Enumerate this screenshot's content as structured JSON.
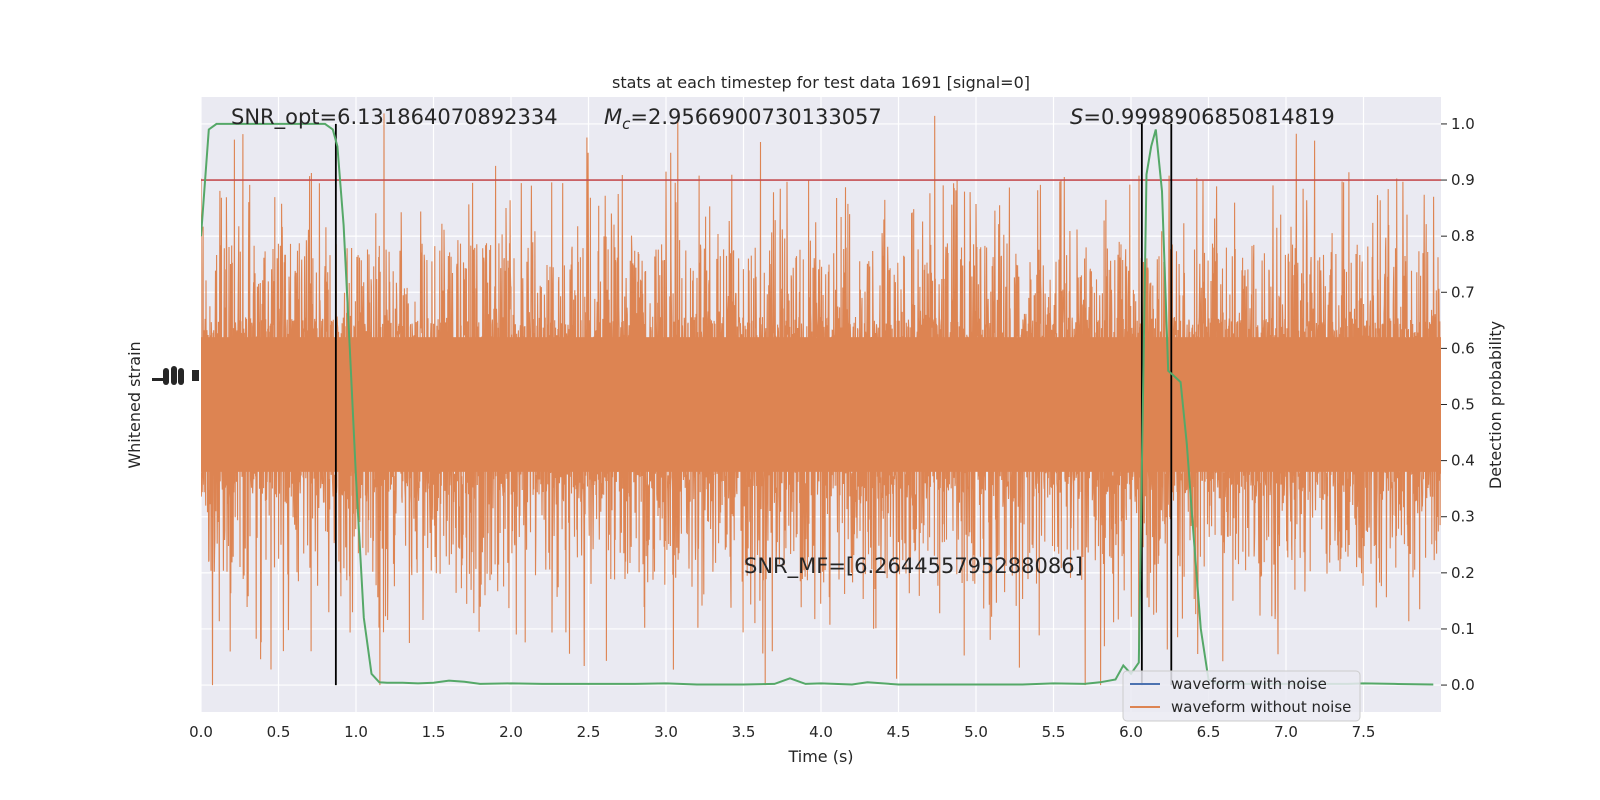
{
  "chart_data": {
    "type": "line",
    "title": "stats at each timestep for test data 1691 [signal=0]",
    "xlabel": "Time (s)",
    "ylabel_left": "Whitened strain",
    "ylabel_right": "Detection probability",
    "xlim": [
      0,
      8
    ],
    "ylim_right": [
      -0.048,
      1.048
    ],
    "x_ticks": [
      0.0,
      0.5,
      1.0,
      1.5,
      2.0,
      2.5,
      3.0,
      3.5,
      4.0,
      4.5,
      5.0,
      5.5,
      6.0,
      6.5,
      7.0,
      7.5
    ],
    "x_tick_labels": [
      "0.0",
      "0.5",
      "1.0",
      "1.5",
      "2.0",
      "2.5",
      "3.0",
      "3.5",
      "4.0",
      "4.5",
      "5.0",
      "5.5",
      "6.0",
      "6.5",
      "7.0",
      "7.5"
    ],
    "y_right_ticks": [
      0.0,
      0.1,
      0.2,
      0.3,
      0.4,
      0.5,
      0.6,
      0.7,
      0.8,
      0.9,
      1.0
    ],
    "y_right_tick_labels": [
      "0.0",
      "0.1",
      "0.2",
      "0.3",
      "0.4",
      "0.5",
      "0.6",
      "0.7",
      "0.8",
      "0.9",
      "1.0"
    ],
    "threshold": 0.9,
    "vertical_markers": [
      0.87,
      6.07,
      6.26
    ],
    "annotations": {
      "snr_opt": "SNR_opt=6.131864070892334",
      "mc_symbol": "M",
      "mc_subscript": "c",
      "mc_value": "=2.9566900730133057",
      "s_symbol": "S",
      "s_value": "=0.9998906850814819",
      "snr_mf": "SNR_MF=[6.264455795288086]"
    },
    "legend": {
      "placement": "lower-right",
      "entries": [
        {
          "label": "waveform with noise",
          "color": "#4c72b0"
        },
        {
          "label": "waveform without noise",
          "color": "#dd8452"
        }
      ]
    },
    "colors": {
      "background": "#eaeaf2",
      "grid": "#ffffff",
      "strain": "#dd8452",
      "probability": "#55a868",
      "threshold": "#c44e52",
      "markers": "#000000"
    },
    "probability_series": {
      "x": [
        0.0,
        0.05,
        0.1,
        0.15,
        0.2,
        0.3,
        0.4,
        0.5,
        0.6,
        0.7,
        0.8,
        0.85,
        0.88,
        0.92,
        0.96,
        1.0,
        1.05,
        1.1,
        1.15,
        1.2,
        1.3,
        1.4,
        1.5,
        1.6,
        1.7,
        1.8,
        2.0,
        2.2,
        2.5,
        2.8,
        3.0,
        3.2,
        3.5,
        3.7,
        3.8,
        3.9,
        4.0,
        4.2,
        4.3,
        4.5,
        4.8,
        5.0,
        5.3,
        5.5,
        5.7,
        5.8,
        5.9,
        5.95,
        6.0,
        6.05,
        6.1,
        6.13,
        6.16,
        6.2,
        6.24,
        6.28,
        6.32,
        6.36,
        6.4,
        6.45,
        6.5,
        6.55,
        6.6,
        6.7,
        6.8,
        7.0,
        7.2,
        7.4,
        7.5,
        7.7,
        7.95
      ],
      "y": [
        0.8,
        0.99,
        1.0,
        1.0,
        1.0,
        1.0,
        1.0,
        1.0,
        1.0,
        1.0,
        1.0,
        0.99,
        0.96,
        0.82,
        0.6,
        0.37,
        0.12,
        0.02,
        0.005,
        0.004,
        0.004,
        0.003,
        0.004,
        0.008,
        0.006,
        0.002,
        0.003,
        0.002,
        0.002,
        0.002,
        0.003,
        0.001,
        0.001,
        0.002,
        0.012,
        0.002,
        0.003,
        0.001,
        0.005,
        0.001,
        0.001,
        0.001,
        0.001,
        0.003,
        0.002,
        0.005,
        0.01,
        0.035,
        0.02,
        0.04,
        0.91,
        0.96,
        0.99,
        0.88,
        0.56,
        0.55,
        0.54,
        0.43,
        0.28,
        0.1,
        0.01,
        0.003,
        0.002,
        0.002,
        0.002,
        0.002,
        0.002,
        0.002,
        0.003,
        0.002,
        0.001
      ]
    },
    "strain_envelope": {
      "center": 0.5,
      "core_half_width": 0.12,
      "typical_half_width": 0.24,
      "max_half_width": 0.52
    }
  }
}
